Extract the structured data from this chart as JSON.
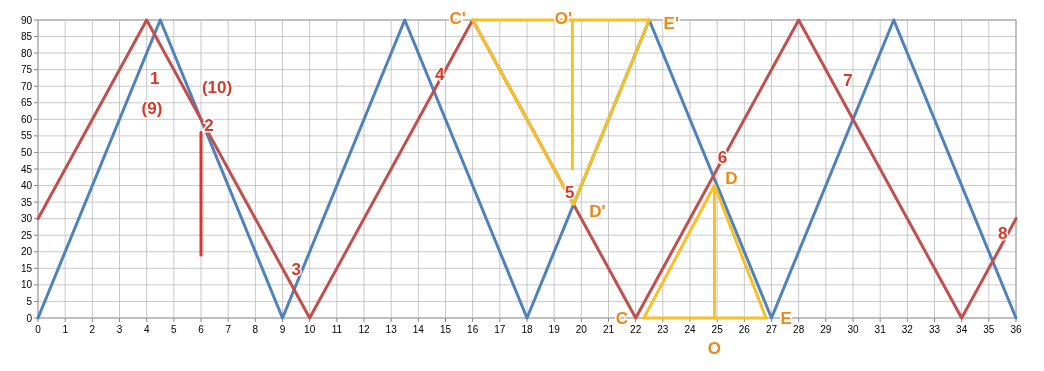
{
  "chart_data": {
    "type": "line",
    "series": [
      {
        "color": "#4f81bd",
        "x": [
          0,
          4.5,
          9,
          13.5,
          18,
          22.5,
          27,
          31.5,
          36
        ],
        "values": [
          0,
          90,
          0,
          90,
          0,
          90,
          0,
          90,
          0
        ]
      },
      {
        "color": "#c0504d",
        "x": [
          0,
          4,
          10,
          16,
          22,
          28,
          34,
          36
        ],
        "values": [
          30,
          90,
          0,
          90,
          0,
          90,
          0,
          30
        ]
      },
      {
        "color": "#f6c026",
        "x": [
          16,
          19.71,
          22.5
        ],
        "values": [
          90,
          34.3,
          90
        ]
      },
      {
        "color": "#f6c026",
        "x": [
          16,
          22.5
        ],
        "values": [
          90,
          90
        ]
      },
      {
        "color": "#f6c026",
        "x": [
          19.67,
          19.67
        ],
        "values": [
          90,
          45
        ]
      },
      {
        "color": "#f6c026",
        "x": [
          22.3,
          24.9,
          26.8
        ],
        "values": [
          0,
          40,
          0
        ]
      },
      {
        "color": "#f6c026",
        "x": [
          22.3,
          26.8
        ],
        "values": [
          0,
          0
        ]
      },
      {
        "color": "#f6c026",
        "x": [
          24.9,
          24.9
        ],
        "values": [
          0,
          40
        ]
      },
      {
        "color": "#e03030",
        "x": [
          6,
          6
        ],
        "values": [
          19,
          56
        ]
      }
    ],
    "annotations": [
      {
        "text": "1",
        "x": 3.6,
        "y": 72
      },
      {
        "text": "(9)",
        "x": 6,
        "y": 60
      },
      {
        "text": "(10)",
        "x": 6,
        "y": 60
      },
      {
        "text": "2",
        "x": 6,
        "y": 60
      },
      {
        "text": "3",
        "x": 9.43,
        "y": 8.6
      },
      {
        "text": "4",
        "x": 14.57,
        "y": 68.6
      },
      {
        "text": "5",
        "x": 19.5,
        "y": 37.5
      },
      {
        "text": "6",
        "x": 24.86,
        "y": 42.86
      },
      {
        "text": "7",
        "x": 30,
        "y": 60
      },
      {
        "text": "8",
        "x": 35.14,
        "y": 17.9
      },
      {
        "text": "C'",
        "x": 16,
        "y": 90
      },
      {
        "text": "O'",
        "x": 19.67,
        "y": 90
      },
      {
        "text": "E'",
        "x": 22.5,
        "y": 90
      },
      {
        "text": "D'",
        "x": 19.71,
        "y": 34.3
      },
      {
        "text": "C",
        "x": 22.3,
        "y": 0
      },
      {
        "text": "O",
        "x": 24.9,
        "y": 0
      },
      {
        "text": "E",
        "x": 26.8,
        "y": 0
      },
      {
        "text": "D",
        "x": 24.9,
        "y": 40
      }
    ],
    "xlim": [
      0,
      36
    ],
    "xticks": [
      0,
      1,
      2,
      3,
      4,
      5,
      6,
      7,
      8,
      9,
      10,
      11,
      12,
      13,
      14,
      15,
      16,
      17,
      18,
      19,
      20,
      21,
      22,
      23,
      24,
      25,
      26,
      27,
      28,
      29,
      30,
      31,
      32,
      33,
      34,
      35,
      36
    ],
    "ylim": [
      0,
      90
    ],
    "yticks": [
      0,
      5,
      10,
      15,
      20,
      25,
      30,
      35,
      40,
      45,
      50,
      55,
      60,
      65,
      70,
      75,
      80,
      85,
      90
    ],
    "grid": true,
    "marker": "none",
    "line_style": "solid"
  }
}
